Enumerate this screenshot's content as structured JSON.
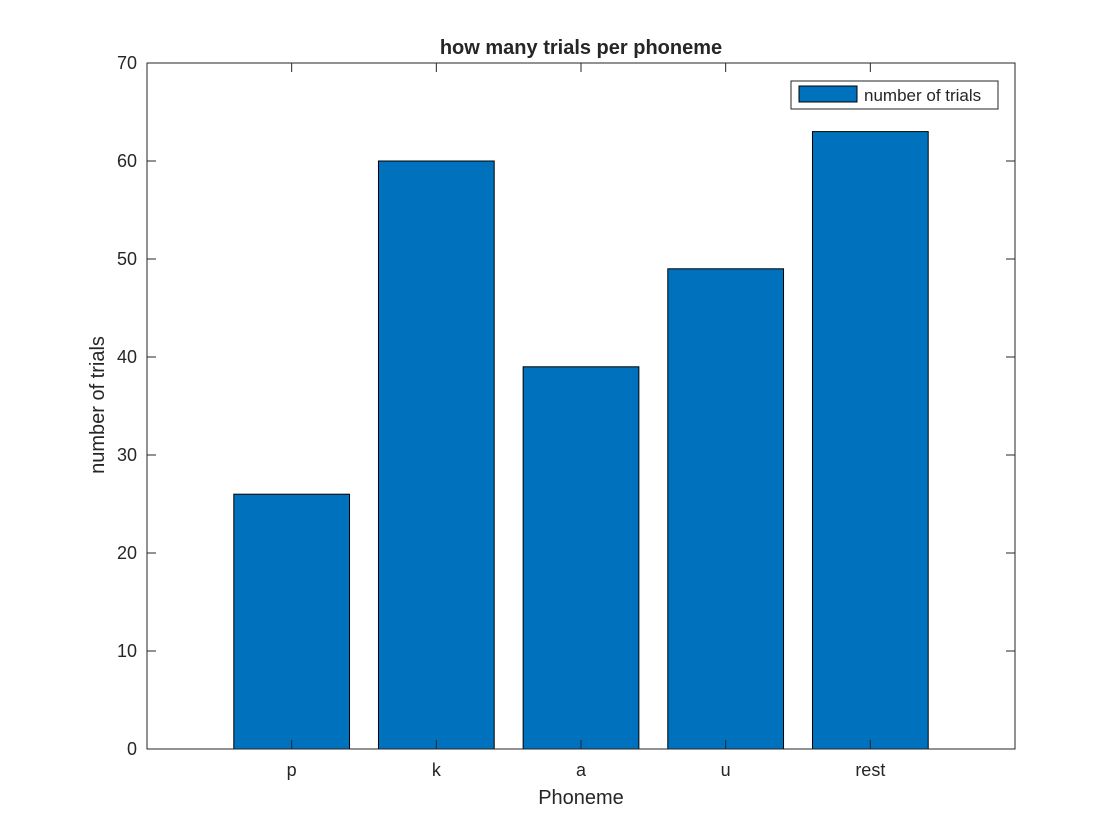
{
  "chart_data": {
    "type": "bar",
    "title": "how many trials per phoneme",
    "xlabel": "Phoneme",
    "ylabel": "number of trials",
    "categories": [
      "p",
      "k",
      "a",
      "u",
      "rest"
    ],
    "series": [
      {
        "name": "number of trials",
        "values": [
          26,
          60,
          39,
          49,
          63
        ]
      }
    ],
    "ylim": [
      0,
      70
    ],
    "yticks": [
      0,
      10,
      20,
      30,
      40,
      50,
      60,
      70
    ],
    "grid": false,
    "legend_position": "top-right",
    "bar_color": "#0072BD"
  }
}
